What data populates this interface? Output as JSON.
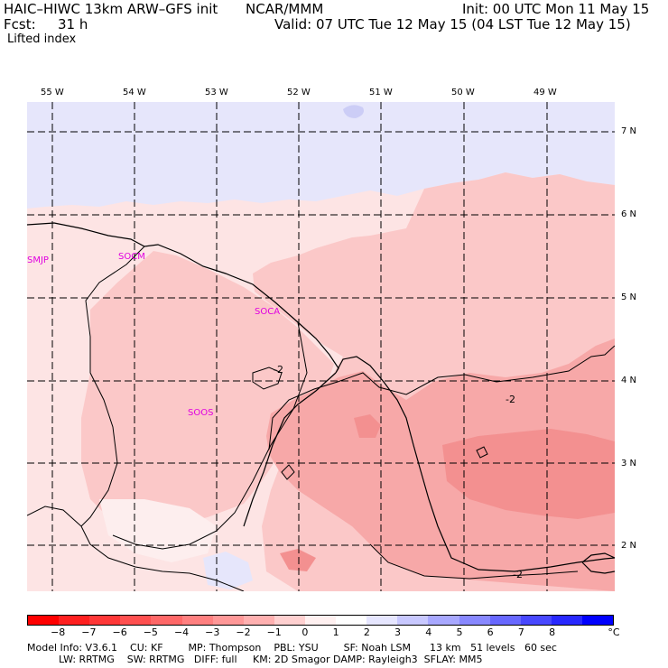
{
  "header": {
    "model": "HAIC–HIWC 13km ARW–GFS init",
    "org": "NCAR/MMM",
    "init": "Init: 00 UTC Mon 11 May 15",
    "fcst_label": "Fcst:",
    "fcst_value": "31 h",
    "valid": "Valid: 07 UTC Tue 12 May 15 (04 LST Tue 12 May 15)",
    "field": "Lifted index"
  },
  "map": {
    "lon_labels": [
      "55 W",
      "54 W",
      "53 W",
      "52 W",
      "51 W",
      "50 W",
      "49 W"
    ],
    "lat_labels": [
      "7 N",
      "6 N",
      "5 N",
      "4 N",
      "3 N",
      "2 N"
    ],
    "stations": [
      "SMJP",
      "SOCM",
      "SOCA",
      "SOOS"
    ],
    "contour_labels": [
      "-2",
      "-2",
      "-2"
    ],
    "colors": {
      "light_pink": "#fde4e4",
      "pink": "#fbc8c8",
      "medium_pink": "#f7a8a8",
      "dark_pink": "#f39090",
      "light_blue": "#e6e6fb",
      "medium_blue": "#cccdf6"
    }
  },
  "colorbar": {
    "ticks": [
      "−8",
      "−7",
      "−6",
      "−5",
      "−4",
      "−3",
      "−2",
      "−1",
      "0",
      "1",
      "2",
      "3",
      "4",
      "5",
      "6",
      "7",
      "8"
    ],
    "unit": "°C",
    "colors": [
      "#ff0000",
      "#ff2020",
      "#ff3838",
      "#ff5050",
      "#ff6868",
      "#ff8080",
      "#ff9898",
      "#ffb0b0",
      "#ffd0d0",
      "#fff0f0",
      "#ffffff",
      "#e6e6ff",
      "#c8c8ff",
      "#a8a8ff",
      "#8888ff",
      "#6868ff",
      "#4848ff",
      "#2828ff",
      "#0000ff"
    ]
  },
  "footer": {
    "line1": "Model Info: V3.6.1    CU: KF        MP: Thompson    PBL: YSU        SF: Noah LSM      13 km   51 levels   60 sec",
    "line2": "          LW: RRTMG    SW: RRTMG   DIFF: full     KM: 2D Smagor DAMP: Rayleigh3  SFLAY: MM5"
  }
}
